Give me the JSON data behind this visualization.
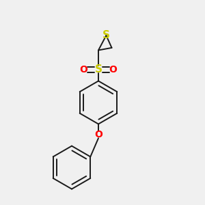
{
  "background_color": "#f0f0f0",
  "bond_color": "#1a1a1a",
  "S_thiirane_color": "#cccc00",
  "S_sulfonyl_color": "#cccc00",
  "O_color": "#ff0000",
  "figsize": [
    3.0,
    3.0
  ],
  "dpi": 100,
  "xlim": [
    0,
    10
  ],
  "ylim": [
    0,
    10
  ],
  "ring_r": 1.05,
  "lw": 1.4
}
